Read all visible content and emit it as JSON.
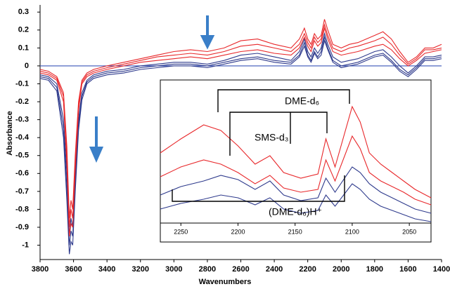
{
  "chart_data": [
    {
      "type": "line",
      "y_label": "Absorbance",
      "x_label": "Wavenumbers",
      "xlim": [
        3800,
        1400
      ],
      "ylim": [
        -1.08,
        0.34
      ],
      "xticks": [
        3800,
        3600,
        3400,
        3200,
        3000,
        2800,
        2600,
        2400,
        2200,
        2000,
        1800,
        1600,
        1400
      ],
      "yticks": [
        0.3,
        0.2,
        0.1,
        0,
        -0.1,
        -0.2,
        -0.3,
        -0.4,
        -0.5,
        -0.6,
        -0.7,
        -0.8,
        -0.9,
        -1
      ],
      "x": [
        3800,
        3750,
        3700,
        3660,
        3640,
        3625,
        3615,
        3605,
        3590,
        3570,
        3550,
        3520,
        3480,
        3400,
        3300,
        3200,
        3100,
        3000,
        2900,
        2800,
        2700,
        2600,
        2500,
        2400,
        2300,
        2250,
        2220,
        2200,
        2180,
        2160,
        2140,
        2120,
        2100,
        2080,
        2050,
        2000,
        1950,
        1900,
        1800,
        1750,
        1700,
        1650,
        1600,
        1550,
        1500,
        1450,
        1400
      ],
      "series": [
        {
          "color": "#2e3a8c",
          "values": [
            -0.07,
            -0.08,
            -0.14,
            -0.4,
            -0.75,
            -1.05,
            -0.98,
            -1.0,
            -0.7,
            -0.36,
            -0.19,
            -0.1,
            -0.07,
            -0.05,
            -0.04,
            -0.02,
            -0.01,
            0,
            0,
            -0.01,
            0.01,
            0.03,
            0.04,
            0.02,
            0.01,
            0.05,
            0.11,
            0.05,
            0.02,
            0.07,
            0.04,
            0.06,
            0.14,
            0.09,
            0.02,
            -0.01,
            0,
            0.01,
            0.05,
            0.06,
            0.02,
            -0.03,
            -0.06,
            -0.02,
            0.03,
            0.03,
            0.04
          ]
        },
        {
          "color": "#2e3a8c",
          "values": [
            -0.06,
            -0.07,
            -0.12,
            -0.35,
            -0.68,
            -1.0,
            -0.92,
            -0.95,
            -0.65,
            -0.33,
            -0.17,
            -0.09,
            -0.06,
            -0.04,
            -0.03,
            -0.01,
            0,
            0.01,
            0.01,
            0,
            0.02,
            0.04,
            0.05,
            0.03,
            0.02,
            0.06,
            0.13,
            0.06,
            0.03,
            0.08,
            0.05,
            0.08,
            0.16,
            0.1,
            0.03,
            0,
            0.01,
            0.02,
            0.06,
            0.07,
            0.03,
            -0.02,
            -0.05,
            -0.01,
            0.04,
            0.04,
            0.05
          ]
        },
        {
          "color": "#2e3a8c",
          "values": [
            -0.05,
            -0.06,
            -0.1,
            -0.3,
            -0.6,
            -0.95,
            -0.85,
            -0.9,
            -0.6,
            -0.3,
            -0.15,
            -0.08,
            -0.05,
            -0.03,
            -0.02,
            0,
            0.01,
            0.02,
            0.02,
            0.01,
            0.03,
            0.06,
            0.07,
            0.05,
            0.03,
            0.08,
            0.15,
            0.08,
            0.05,
            0.1,
            0.07,
            0.1,
            0.18,
            0.12,
            0.05,
            0.02,
            0.03,
            0.04,
            0.08,
            0.09,
            0.05,
            0,
            -0.04,
            0,
            0.05,
            0.05,
            0.06
          ]
        },
        {
          "color": "#e8282b",
          "values": [
            -0.04,
            -0.05,
            -0.08,
            -0.2,
            -0.55,
            -0.95,
            -0.88,
            -0.9,
            -0.58,
            -0.25,
            -0.1,
            -0.06,
            -0.04,
            -0.02,
            0,
            0.02,
            0.03,
            0.04,
            0.05,
            0.04,
            0.06,
            0.08,
            0.09,
            0.07,
            0.06,
            0.1,
            0.16,
            0.11,
            0.08,
            0.14,
            0.11,
            0.13,
            0.21,
            0.15,
            0.08,
            0.06,
            0.07,
            0.08,
            0.11,
            0.12,
            0.09,
            0.04,
            0,
            0.03,
            0.07,
            0.08,
            0.09
          ]
        },
        {
          "color": "#e8282b",
          "values": [
            -0.03,
            -0.04,
            -0.07,
            -0.17,
            -0.5,
            -0.9,
            -0.8,
            -0.85,
            -0.55,
            -0.22,
            -0.09,
            -0.05,
            -0.03,
            -0.01,
            0.01,
            0.03,
            0.05,
            0.06,
            0.07,
            0.06,
            0.08,
            0.11,
            0.12,
            0.1,
            0.08,
            0.12,
            0.18,
            0.13,
            0.1,
            0.16,
            0.13,
            0.15,
            0.23,
            0.17,
            0.1,
            0.08,
            0.1,
            0.11,
            0.14,
            0.16,
            0.12,
            0.06,
            0.01,
            0.04,
            0.09,
            0.09,
            0.1
          ]
        },
        {
          "color": "#e8282b",
          "values": [
            -0.02,
            -0.03,
            -0.06,
            -0.15,
            -0.45,
            -0.85,
            -0.75,
            -0.8,
            -0.5,
            -0.2,
            -0.08,
            -0.04,
            -0.02,
            0,
            0.02,
            0.04,
            0.06,
            0.08,
            0.09,
            0.08,
            0.1,
            0.14,
            0.15,
            0.12,
            0.1,
            0.15,
            0.21,
            0.15,
            0.12,
            0.18,
            0.15,
            0.17,
            0.26,
            0.2,
            0.12,
            0.1,
            0.12,
            0.13,
            0.17,
            0.19,
            0.15,
            0.08,
            0.02,
            0.05,
            0.1,
            0.1,
            0.12
          ]
        }
      ]
    },
    {
      "type": "line",
      "xlim": [
        2268,
        2031
      ],
      "ylim": [
        0,
        1
      ],
      "xticks": [
        2250,
        2200,
        2150,
        2100,
        2050
      ],
      "annotations": [
        "DME-d₆",
        "SMS-d₃",
        "(DME-d₆)H⁺"
      ],
      "x": [
        2268,
        2250,
        2230,
        2215,
        2200,
        2185,
        2172,
        2160,
        2145,
        2130,
        2123,
        2115,
        2100,
        2093,
        2085,
        2075,
        2065,
        2055,
        2045,
        2031
      ],
      "series": [
        {
          "color": "#2e3a8c",
          "values": [
            0.1,
            0.14,
            0.17,
            0.2,
            0.18,
            0.13,
            0.18,
            0.1,
            0.07,
            0.09,
            0.2,
            0.12,
            0.28,
            0.24,
            0.17,
            0.12,
            0.09,
            0.06,
            0.03,
            0.01
          ]
        },
        {
          "color": "#2e3a8c",
          "values": [
            0.2,
            0.26,
            0.3,
            0.34,
            0.31,
            0.24,
            0.3,
            0.2,
            0.16,
            0.18,
            0.32,
            0.22,
            0.4,
            0.36,
            0.28,
            0.22,
            0.18,
            0.14,
            0.1,
            0.07
          ]
        },
        {
          "color": "#e8282b",
          "values": [
            0.33,
            0.4,
            0.45,
            0.42,
            0.36,
            0.28,
            0.34,
            0.25,
            0.22,
            0.24,
            0.45,
            0.3,
            0.62,
            0.53,
            0.36,
            0.3,
            0.26,
            0.22,
            0.17,
            0.13
          ]
        },
        {
          "color": "#e8282b",
          "values": [
            0.5,
            0.6,
            0.7,
            0.66,
            0.55,
            0.42,
            0.48,
            0.36,
            0.32,
            0.35,
            0.6,
            0.4,
            0.83,
            0.72,
            0.5,
            0.42,
            0.36,
            0.3,
            0.24,
            0.18
          ]
        }
      ]
    }
  ]
}
